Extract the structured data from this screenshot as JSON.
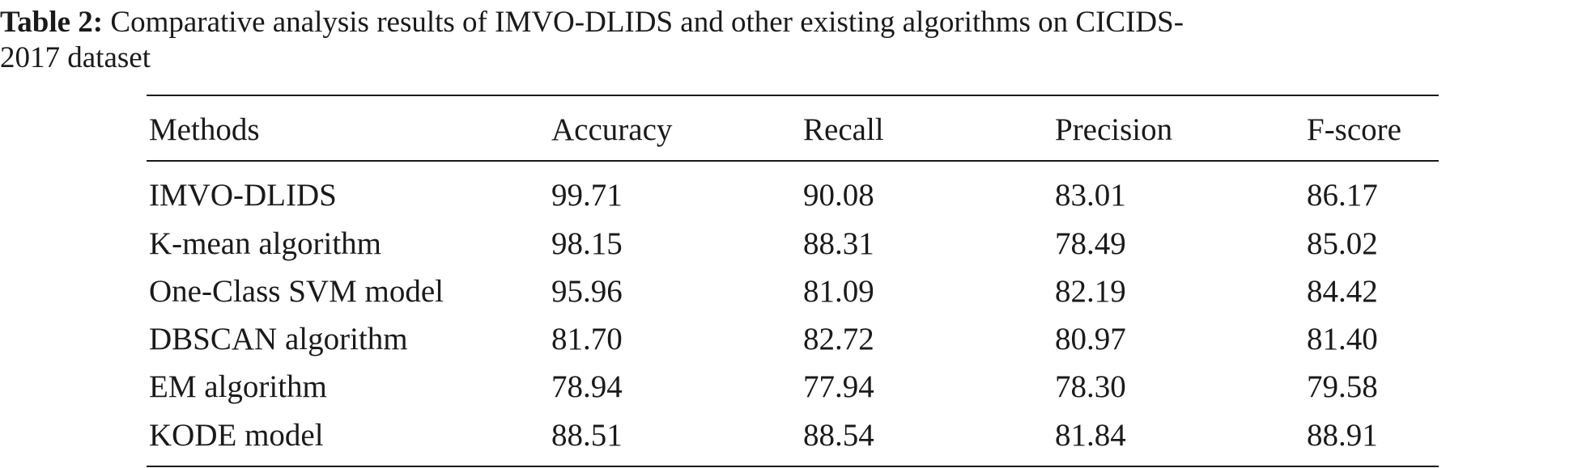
{
  "caption": {
    "label": "Table 2:",
    "text_line1": "Comparative analysis results of IMVO-DLIDS and other existing algorithms on CICIDS-",
    "text_line2": "2017 dataset"
  },
  "table": {
    "headers": [
      "Methods",
      "Accuracy",
      "Recall",
      "Precision",
      "F-score"
    ],
    "rows": [
      [
        "IMVO-DLIDS",
        "99.71",
        "90.08",
        "83.01",
        "86.17"
      ],
      [
        "K-mean algorithm",
        "98.15",
        "88.31",
        "78.49",
        "85.02"
      ],
      [
        "One-Class SVM model",
        "95.96",
        "81.09",
        "82.19",
        "84.42"
      ],
      [
        "DBSCAN algorithm",
        "81.70",
        "82.72",
        "80.97",
        "81.40"
      ],
      [
        "EM algorithm",
        "78.94",
        "77.94",
        "78.30",
        "79.58"
      ],
      [
        "KODE model",
        "88.51",
        "88.54",
        "81.84",
        "88.91"
      ]
    ]
  }
}
